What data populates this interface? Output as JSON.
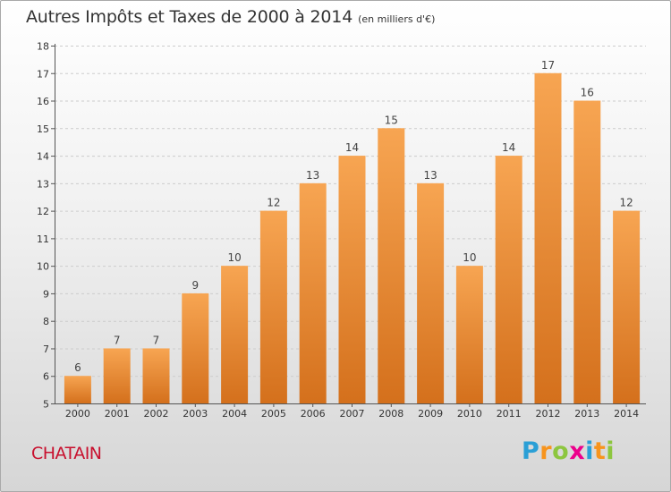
{
  "title": "Autres Impôts et Taxes de 2000 à 2014",
  "subtitle": "(en milliers d'€)",
  "commune": "CHATAIN",
  "logo": {
    "letters": [
      "P",
      "r",
      "o",
      "x",
      "i",
      "t",
      "i"
    ],
    "colors": [
      "#2a9fd6",
      "#f7941d",
      "#8dc63f",
      "#ec008c",
      "#2a9fd6",
      "#f7941d",
      "#8dc63f"
    ]
  },
  "colors": {
    "bar_top": "#f7a552",
    "bar_bottom": "#d4701c",
    "grid": "#cccccc",
    "axis": "#555555"
  },
  "chart_data": {
    "type": "bar",
    "categories": [
      "2000",
      "2001",
      "2002",
      "2003",
      "2004",
      "2005",
      "2006",
      "2007",
      "2008",
      "2009",
      "2010",
      "2011",
      "2012",
      "2013",
      "2014"
    ],
    "values": [
      6,
      7,
      7,
      9,
      10,
      12,
      13,
      14,
      15,
      13,
      10,
      14,
      17,
      16,
      12
    ],
    "ylim": [
      5,
      18
    ],
    "yticks": [
      5,
      6,
      7,
      8,
      9,
      10,
      11,
      12,
      13,
      14,
      15,
      16,
      17,
      18
    ],
    "grid": true,
    "data_labels": true
  }
}
